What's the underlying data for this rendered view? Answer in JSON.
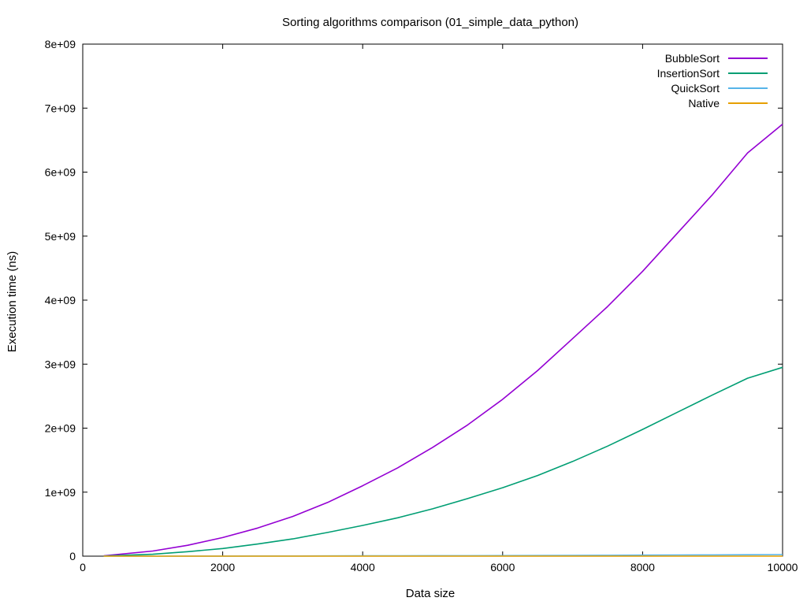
{
  "chart_data": {
    "type": "line",
    "title": "Sorting algorithms comparison (01_simple_data_python)",
    "xlabel": "Data size",
    "ylabel": "Execution time (ns)",
    "xlim": [
      0,
      10000
    ],
    "ylim": [
      0,
      8000000000
    ],
    "x_ticks": [
      0,
      2000,
      4000,
      6000,
      8000,
      10000
    ],
    "x_tick_labels": [
      "0",
      "2000",
      "4000",
      "6000",
      "8000",
      "10000"
    ],
    "y_ticks": [
      0,
      1000000000,
      2000000000,
      3000000000,
      4000000000,
      5000000000,
      6000000000,
      7000000000,
      8000000000
    ],
    "y_tick_labels": [
      "0",
      "1e+09",
      "2e+09",
      "3e+09",
      "4e+09",
      "5e+09",
      "6e+09",
      "7e+09",
      "8e+09"
    ],
    "grid": false,
    "legend_position": "top-right",
    "x": [
      300,
      1000,
      1500,
      2000,
      2500,
      3000,
      3500,
      4000,
      4500,
      5000,
      5500,
      6000,
      6500,
      7000,
      7500,
      8000,
      8500,
      9000,
      9500,
      10000
    ],
    "series": [
      {
        "name": "BubbleSort",
        "color": "#9400d3",
        "values": [
          5000000,
          80000000,
          170000000,
          290000000,
          440000000,
          620000000,
          840000000,
          1100000000,
          1380000000,
          1700000000,
          2050000000,
          2450000000,
          2900000000,
          3400000000,
          3900000000,
          4450000000,
          5050000000,
          5650000000,
          6300000000,
          6750000000
        ]
      },
      {
        "name": "InsertionSort",
        "color": "#009e73",
        "values": [
          2000000,
          30000000,
          70000000,
          120000000,
          190000000,
          270000000,
          370000000,
          480000000,
          600000000,
          740000000,
          900000000,
          1070000000,
          1260000000,
          1480000000,
          1720000000,
          1980000000,
          2250000000,
          2520000000,
          2780000000,
          2950000000
        ]
      },
      {
        "name": "QuickSort",
        "color": "#56b4e9",
        "values": [
          100000,
          500000,
          1000000,
          1500000,
          2000000,
          3000000,
          4000000,
          5000000,
          6000000,
          7000000,
          8000000,
          9000000,
          10000000,
          12000000,
          14000000,
          16000000,
          18000000,
          20000000,
          22000000,
          25000000
        ]
      },
      {
        "name": "Native",
        "color": "#e69f00",
        "values": [
          10000,
          30000,
          50000,
          70000,
          90000,
          110000,
          130000,
          150000,
          170000,
          190000,
          210000,
          230000,
          250000,
          270000,
          290000,
          310000,
          330000,
          350000,
          370000,
          390000
        ]
      }
    ]
  }
}
